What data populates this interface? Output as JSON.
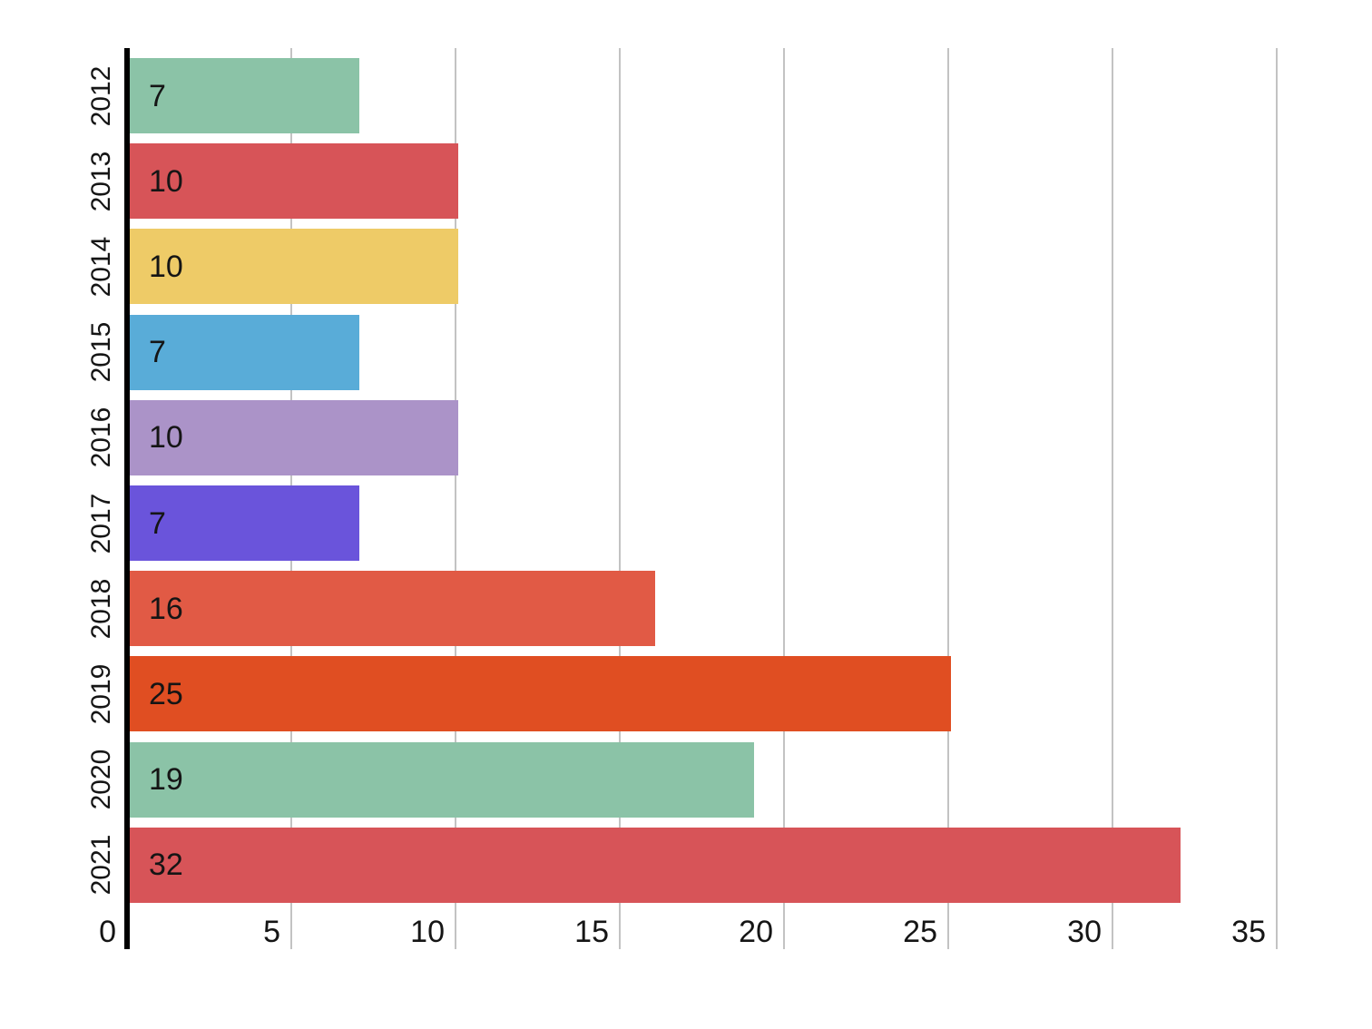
{
  "chart_data": {
    "type": "bar",
    "orientation": "horizontal",
    "title": "",
    "xlabel": "",
    "ylabel": "",
    "categories": [
      "2012",
      "2013",
      "2014",
      "2015",
      "2016",
      "2017",
      "2018",
      "2019",
      "2020",
      "2021"
    ],
    "values": [
      7,
      10,
      10,
      7,
      10,
      7,
      16,
      25,
      19,
      32
    ],
    "bar_labels": [
      "7",
      "10",
      "10",
      "7",
      "10",
      "7",
      "16",
      "25",
      "19",
      "32"
    ],
    "colors": [
      "#8BC3A7",
      "#D75458",
      "#EECB67",
      "#59ACD8",
      "#AB93C8",
      "#6A54DB",
      "#E15A45",
      "#E04E22",
      "#8BC3A7",
      "#D75458"
    ],
    "xlim": [
      0,
      35
    ],
    "x_ticks": [
      0,
      5,
      10,
      15,
      20,
      25,
      30,
      35
    ],
    "grid": "vertical",
    "legend": "none",
    "axis_color": "#000000",
    "gridline_color": "#C3C3C3",
    "label_color": "#151515",
    "background": "#FFFFFF"
  }
}
